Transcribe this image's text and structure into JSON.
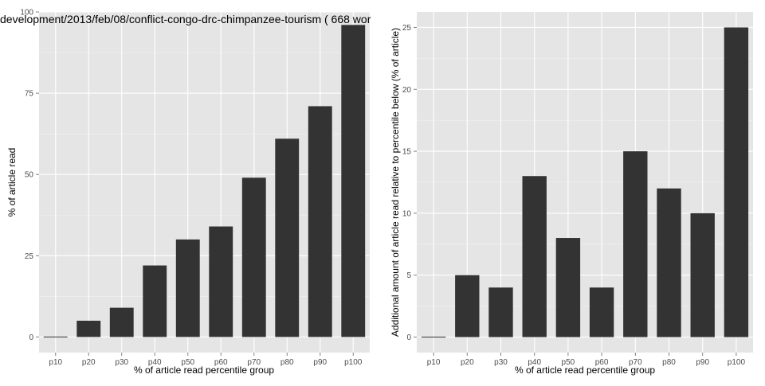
{
  "colors": {
    "panel_background": "#e5e5e5",
    "grid_major": "#ffffff",
    "grid_minor": "#f2f2f2",
    "bar_fill": "#333333",
    "tick_text": "#4d4d4d",
    "axis_text": "#000000"
  },
  "chart_data": [
    {
      "type": "bar",
      "title": "development/2013/feb/08/conflict-congo-drc-chimpanzee-tourism ( 668 wor",
      "xlabel": "% of article read percentile group",
      "ylabel": "% of article read",
      "categories": [
        "p10",
        "p20",
        "p30",
        "p40",
        "p50",
        "p60",
        "p70",
        "p80",
        "p90",
        "p100"
      ],
      "values": [
        0,
        5,
        9,
        22,
        30,
        34,
        49,
        61,
        71,
        96
      ],
      "ylim": [
        -4.8,
        100
      ],
      "yticks": [
        0,
        25,
        50,
        75,
        100
      ],
      "grid": true,
      "legend": "none"
    },
    {
      "type": "bar",
      "title": "",
      "xlabel": "% of article read percentile group",
      "ylabel": "Additional amount of article read relative to percentile below (% of article)",
      "categories": [
        "p10",
        "p20",
        "p30",
        "p40",
        "p50",
        "p60",
        "p70",
        "p80",
        "p90",
        "p100"
      ],
      "values": [
        0,
        5,
        4,
        13,
        8,
        4,
        15,
        12,
        10,
        25
      ],
      "ylim": [
        -1.25,
        26.25
      ],
      "yticks": [
        0,
        5,
        10,
        15,
        20,
        25
      ],
      "grid": true,
      "legend": "none"
    }
  ]
}
